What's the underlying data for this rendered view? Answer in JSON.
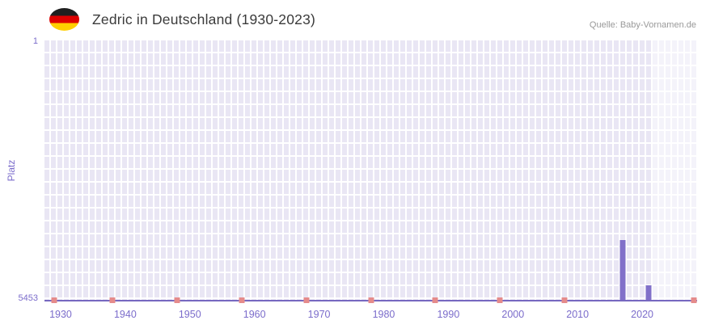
{
  "header": {
    "title": "Zedric in Deutschland (1930-2023)",
    "source": "Quelle: Baby-Vornamen.de"
  },
  "flag": {
    "name": "germany-flag-icon",
    "colors": [
      "#1f1f1f",
      "#dd0000",
      "#ffce00"
    ]
  },
  "chart_data": {
    "type": "bar",
    "title": "Zedric in Deutschland (1930-2023)",
    "xlabel": "",
    "ylabel": "Platz",
    "y_axis": {
      "min": 1,
      "max": 5453,
      "inverted": true,
      "top_tick": "1",
      "bottom_tick": "5453"
    },
    "x_axis": {
      "domain_start": 1928,
      "domain_end": 2029,
      "data_start_year": 1930,
      "data_end_year": 2023,
      "tick_years": [
        1930,
        1940,
        1950,
        1960,
        1970,
        1980,
        1990,
        2000,
        2010,
        2020
      ]
    },
    "series": [
      {
        "name": "Platz",
        "points": [
          {
            "year": 2017,
            "rank": 4200
          },
          {
            "year": 2021,
            "rank": 5140
          }
        ]
      }
    ],
    "bottom_marker_years": [
      1929,
      1938,
      1948,
      1958,
      1968,
      1978,
      1988,
      1998,
      2008,
      2028
    ],
    "highlight_band": {
      "start_year": 2022,
      "end_year": 2029
    },
    "grid": true,
    "legend": "none",
    "colors": {
      "bar": "#8170c9",
      "marker": "#e58b8b",
      "axis_text": "#7b6ccb",
      "plot_bg": "#e9e6f4",
      "baseline": "#7668c0",
      "band": "rgba(255,255,255,0.5)",
      "title": "#3b3b3b",
      "source": "#999999"
    }
  }
}
